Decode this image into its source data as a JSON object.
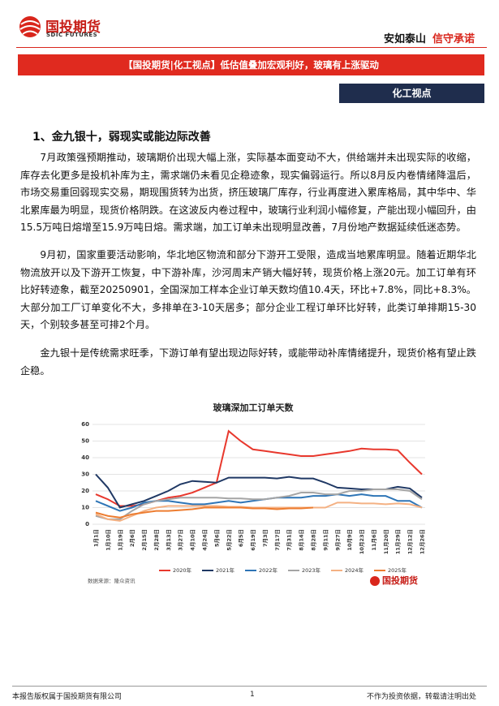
{
  "header": {
    "logo_cn": "国投期货",
    "logo_en": "SDIC FUTURES",
    "slogan_1": "安如泰山",
    "slogan_2": "信守承诺"
  },
  "banner": "【国投期货|化工视点】低估值叠加宏观利好，玻璃有上涨驱动",
  "tag": "化工视点",
  "section_heading": "1、金九银十，弱现实或能边际改善",
  "paragraphs": [
    "7月政策强预期推动，玻璃期价出现大幅上涨，实际基本面变动不大，供给端并未出现实际的收缩，库存去化更多是投机补库为主，需求端仍未看见企稳迹象，现实偏弱运行。所以8月反内卷情绪降温后，市场交易重回弱现实交易，期现围货转为出货，挤压玻璃厂库存，行业再度进入累库格局，其中华中、华北累库最为明显，现货价格阴跌。在这波反内卷过程中，玻璃行业利润小幅修复，产能出现小幅回升，由15.5万吨日熔增至15.9万吨日熔。需求端，加工订单未出现明显改善，7月份地产数据延续低迷态势。",
    "9月初，国家重要活动影响，华北地区物流和部分下游开工受限，造成当地累库明显。随着近期华北物流放开以及下游开工恢复，中下游补库，沙河周末产销大幅好转，现货价格上涨20元。加工订单有环比好转迹象，截至20250901，全国深加工样本企业订单天数均值10.4天，环比+7.8%，同比+8.3%。大部分加工厂订单变化不大，多排单在3-10天居多；部分企业工程订单环比好转，此类订单排期15-30天，个别较多甚至可排2个月。",
    "金九银十是传统需求旺季，下游订单有望出现边际好转，或能带动补库情绪提升，现货价格有望止跌企稳。"
  ],
  "chart_data": {
    "type": "line",
    "title": "玻璃深加工订单天数",
    "categories": [
      "1月1日",
      "1月10日",
      "1月19日",
      "2月6日",
      "2月15日",
      "2月28日",
      "3月13日",
      "3月27日",
      "4月10日",
      "4月24日",
      "5月6日",
      "5月22日",
      "6月5日",
      "6月19日",
      "7月3日",
      "7月17日",
      "7月31日",
      "8月14日",
      "8月28日",
      "9月11日",
      "9月27日",
      "10月9日",
      "10月23日",
      "11月6日",
      "11月20日",
      "11月29日",
      "12月12日",
      "12月26日"
    ],
    "series": [
      {
        "name": "2020年",
        "color": "#e8382d",
        "values": [
          18,
          15,
          11,
          11,
          12,
          14,
          16,
          17,
          19,
          22,
          25,
          56,
          50,
          45,
          44,
          43,
          42,
          41,
          41,
          42,
          43,
          44,
          45.5,
          45,
          45,
          44.5,
          37,
          30
        ]
      },
      {
        "name": "2021年",
        "color": "#1f3864",
        "values": [
          30,
          22,
          10,
          12,
          14,
          17,
          20,
          24,
          26,
          25.5,
          25,
          28,
          28,
          28,
          28,
          27.5,
          28.5,
          27.5,
          27.5,
          25,
          22,
          21.5,
          21,
          21,
          21,
          22.5,
          21.5,
          16
        ]
      },
      {
        "name": "2022年",
        "color": "#2e75b6",
        "values": [
          14,
          11,
          8,
          10,
          13,
          14,
          14,
          13,
          12,
          12,
          13,
          14,
          13,
          14,
          15,
          16,
          16,
          16,
          17,
          17,
          18,
          17,
          18,
          17,
          17,
          14,
          14,
          10
        ]
      },
      {
        "name": "2023年",
        "color": "#a5a5a5",
        "values": [
          5,
          3,
          3,
          8,
          12,
          14,
          15,
          16,
          16,
          16,
          16,
          15.5,
          15.5,
          15,
          15,
          16,
          17,
          19,
          19,
          18,
          18,
          20,
          20,
          21,
          21,
          21,
          20,
          15
        ]
      },
      {
        "name": "2024年",
        "color": "#f4b183",
        "values": [
          6,
          3,
          2,
          5,
          8,
          10,
          11,
          11,
          11,
          11,
          11,
          10.5,
          10.5,
          10,
          10,
          10,
          10,
          10,
          10,
          10,
          13,
          13,
          12.5,
          12.5,
          12,
          12.5,
          12,
          10
        ]
      },
      {
        "name": "2025年",
        "color": "#ed7d31",
        "values": [
          7,
          5,
          4,
          6,
          7,
          8,
          8,
          8.5,
          9,
          10,
          10,
          10,
          10,
          9.5,
          9.5,
          9,
          9.5,
          9.5,
          10,
          null,
          null,
          null,
          null,
          null,
          null,
          null,
          null,
          null
        ]
      }
    ],
    "ylim": [
      0,
      60
    ],
    "yticks": [
      0,
      10,
      20,
      30,
      40,
      50,
      60
    ],
    "grid": true,
    "source": "数据来源：隆众资讯",
    "logo": "国投期货"
  },
  "footer": {
    "left": "本报告版权属于国投期货有限公司",
    "page": "1",
    "right": "不作为投资依据，转载请注明出处"
  }
}
